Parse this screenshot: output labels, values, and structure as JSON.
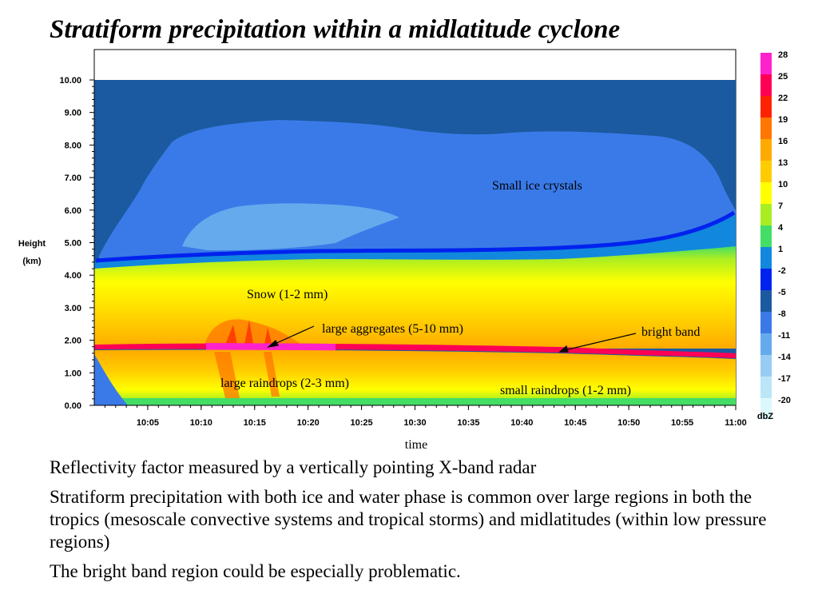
{
  "title": "Stratiform precipitation within a midlatitude cyclone",
  "chart_data": {
    "type": "heatmap",
    "ylabel": "Height",
    "yunit": "(km)",
    "xlabel": "time",
    "ylim": [
      0,
      10
    ],
    "x_range": [
      "10:00",
      "11:00"
    ],
    "yticks": [
      "0.00",
      "1.00",
      "2.00",
      "3.00",
      "4.00",
      "5.00",
      "6.00",
      "7.00",
      "8.00",
      "9.00",
      "10.00"
    ],
    "xticks": [
      "10:05",
      "10:10",
      "10:15",
      "10:20",
      "10:25",
      "10:30",
      "10:35",
      "10:40",
      "10:45",
      "10:50",
      "10:55",
      "11:00"
    ],
    "colorbar": {
      "unit": "dbZ",
      "levels": [
        "28",
        "25",
        "22",
        "19",
        "16",
        "13",
        "10",
        "7",
        "4",
        "1",
        "-2",
        "-5",
        "-8",
        "-11",
        "-14",
        "-17",
        "-20"
      ],
      "colors": [
        "#ff22cc",
        "#ff0055",
        "#ff2200",
        "#ff7700",
        "#ffaa00",
        "#ffcc00",
        "#ffff00",
        "#aaee22",
        "#44dd66",
        "#1188dd",
        "#0022ee",
        "#1b5aa0",
        "#3a7ae8",
        "#66aaee",
        "#99ccf4",
        "#bbe6f8",
        "#ddf8fc"
      ]
    },
    "layers": [
      {
        "name": "cloud top region",
        "height_km": [
          5.0,
          10.0
        ],
        "dbz": "-8"
      },
      {
        "name": "ice crystals",
        "height_km": [
          4.5,
          9.0
        ],
        "dbz": "-11"
      },
      {
        "name": "snow",
        "height_km": [
          1.7,
          4.5
        ],
        "dbz": "10 to 16"
      },
      {
        "name": "bright band",
        "height_km": [
          1.6,
          1.8
        ],
        "dbz": "22 to 28"
      },
      {
        "name": "rain",
        "height_km": [
          0.0,
          1.6
        ],
        "dbz": "10 to 16"
      }
    ],
    "annotations": [
      {
        "text": "Small ice crystals"
      },
      {
        "text": "Snow (1-2 mm)"
      },
      {
        "text": "large aggregates (5-10 mm)"
      },
      {
        "text": "bright band"
      },
      {
        "text": "large raindrops (2-3 mm)"
      },
      {
        "text": "small raindrops  (1-2 mm)"
      }
    ]
  },
  "bullets": [
    "Reflectivity factor measured by a vertically pointing X-band radar",
    "Stratiform precipitation with both ice and water phase is common over large regions in both the tropics (mesoscale convective systems and tropical storms) and midlatitudes (within low pressure regions)",
    "The bright band region could be especially problematic."
  ]
}
